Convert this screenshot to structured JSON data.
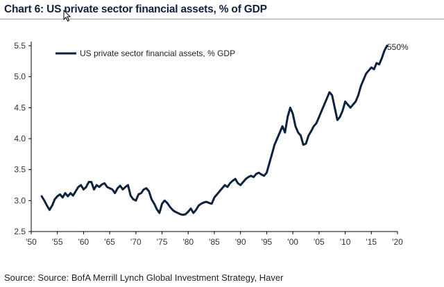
{
  "header": {
    "title": "Chart 6: US private sector financial assets, % of GDP"
  },
  "footer": {
    "source": "Source: Source: BofA Merrill Lynch Global Investment Strategy, Haver"
  },
  "colors": {
    "line": "#0d2140",
    "title": "#0d2140",
    "axis": "#000000"
  },
  "chart_data": {
    "type": "line",
    "title": "Chart 6: US private sector financial assets, % of GDP",
    "xlabel": "",
    "ylabel": "",
    "xlim": [
      1950,
      2020
    ],
    "ylim": [
      2.5,
      5.5
    ],
    "x_tick_labels": [
      "'50",
      "'55",
      "'60",
      "'65",
      "'70",
      "'75",
      "'80",
      "'85",
      "'90",
      "'95",
      "'00",
      "'05",
      "'10",
      "'15",
      "'20"
    ],
    "y_ticks": [
      "2.5",
      "3.0",
      "3.5",
      "4.0",
      "4.5",
      "5.0",
      "5.5"
    ],
    "grid": false,
    "legend_position": "top-left",
    "annotation": "550%",
    "series": [
      {
        "name": "US private sector financial assets, % GDP",
        "x": [
          1952.0,
          1952.5,
          1953.0,
          1953.5,
          1954.0,
          1954.5,
          1955.0,
          1955.5,
          1956.0,
          1956.5,
          1957.0,
          1957.5,
          1958.0,
          1958.5,
          1959.0,
          1959.5,
          1960.0,
          1960.5,
          1961.0,
          1961.5,
          1962.0,
          1962.5,
          1963.0,
          1963.5,
          1964.0,
          1964.5,
          1965.0,
          1965.5,
          1966.0,
          1966.5,
          1967.0,
          1967.5,
          1968.0,
          1968.5,
          1969.0,
          1969.5,
          1970.0,
          1970.5,
          1971.0,
          1971.5,
          1972.0,
          1972.5,
          1973.0,
          1973.5,
          1974.0,
          1974.5,
          1975.0,
          1975.5,
          1976.0,
          1976.5,
          1977.0,
          1977.5,
          1978.0,
          1978.5,
          1979.0,
          1979.5,
          1980.0,
          1980.5,
          1981.0,
          1981.5,
          1982.0,
          1982.5,
          1983.0,
          1983.5,
          1984.0,
          1984.5,
          1985.0,
          1985.5,
          1986.0,
          1986.5,
          1987.0,
          1987.5,
          1988.0,
          1988.5,
          1989.0,
          1989.5,
          1990.0,
          1990.5,
          1991.0,
          1991.5,
          1992.0,
          1992.5,
          1993.0,
          1993.5,
          1994.0,
          1994.5,
          1995.0,
          1995.5,
          1996.0,
          1996.5,
          1997.0,
          1997.5,
          1998.0,
          1998.5,
          1999.0,
          1999.5,
          2000.0,
          2000.5,
          2001.0,
          2001.5,
          2002.0,
          2002.5,
          2003.0,
          2003.5,
          2004.0,
          2004.5,
          2005.0,
          2005.5,
          2006.0,
          2006.5,
          2007.0,
          2007.5,
          2008.0,
          2008.5,
          2009.0,
          2009.5,
          2010.0,
          2010.5,
          2011.0,
          2011.5,
          2012.0,
          2012.5,
          2013.0,
          2013.5,
          2014.0,
          2014.5,
          2015.0,
          2015.5,
          2016.0,
          2016.5,
          2017.0,
          2017.5,
          2018.0
        ],
        "values": [
          3.07,
          3.0,
          2.92,
          2.85,
          2.92,
          3.02,
          3.07,
          3.1,
          3.05,
          3.12,
          3.07,
          3.12,
          3.08,
          3.15,
          3.22,
          3.25,
          3.18,
          3.22,
          3.3,
          3.3,
          3.18,
          3.25,
          3.22,
          3.26,
          3.28,
          3.22,
          3.2,
          3.18,
          3.12,
          3.2,
          3.24,
          3.18,
          3.22,
          3.25,
          3.08,
          3.02,
          3.0,
          3.1,
          3.12,
          3.18,
          3.2,
          3.15,
          3.02,
          2.95,
          2.86,
          2.8,
          2.95,
          3.0,
          2.96,
          2.9,
          2.85,
          2.82,
          2.8,
          2.78,
          2.77,
          2.78,
          2.82,
          2.87,
          2.8,
          2.85,
          2.92,
          2.95,
          2.97,
          2.98,
          2.96,
          2.95,
          3.05,
          3.1,
          3.15,
          3.2,
          3.25,
          3.22,
          3.28,
          3.32,
          3.35,
          3.28,
          3.25,
          3.3,
          3.35,
          3.38,
          3.4,
          3.38,
          3.43,
          3.45,
          3.42,
          3.4,
          3.45,
          3.6,
          3.75,
          3.9,
          4.0,
          4.1,
          4.2,
          4.1,
          4.35,
          4.5,
          4.4,
          4.2,
          4.1,
          4.05,
          3.9,
          3.92,
          4.05,
          4.12,
          4.2,
          4.25,
          4.35,
          4.45,
          4.55,
          4.65,
          4.75,
          4.7,
          4.5,
          4.3,
          4.35,
          4.45,
          4.6,
          4.55,
          4.5,
          4.55,
          4.6,
          4.7,
          4.85,
          4.95,
          5.05,
          5.1,
          5.15,
          5.12,
          5.22,
          5.2,
          5.3,
          5.42,
          5.5
        ]
      }
    ]
  }
}
